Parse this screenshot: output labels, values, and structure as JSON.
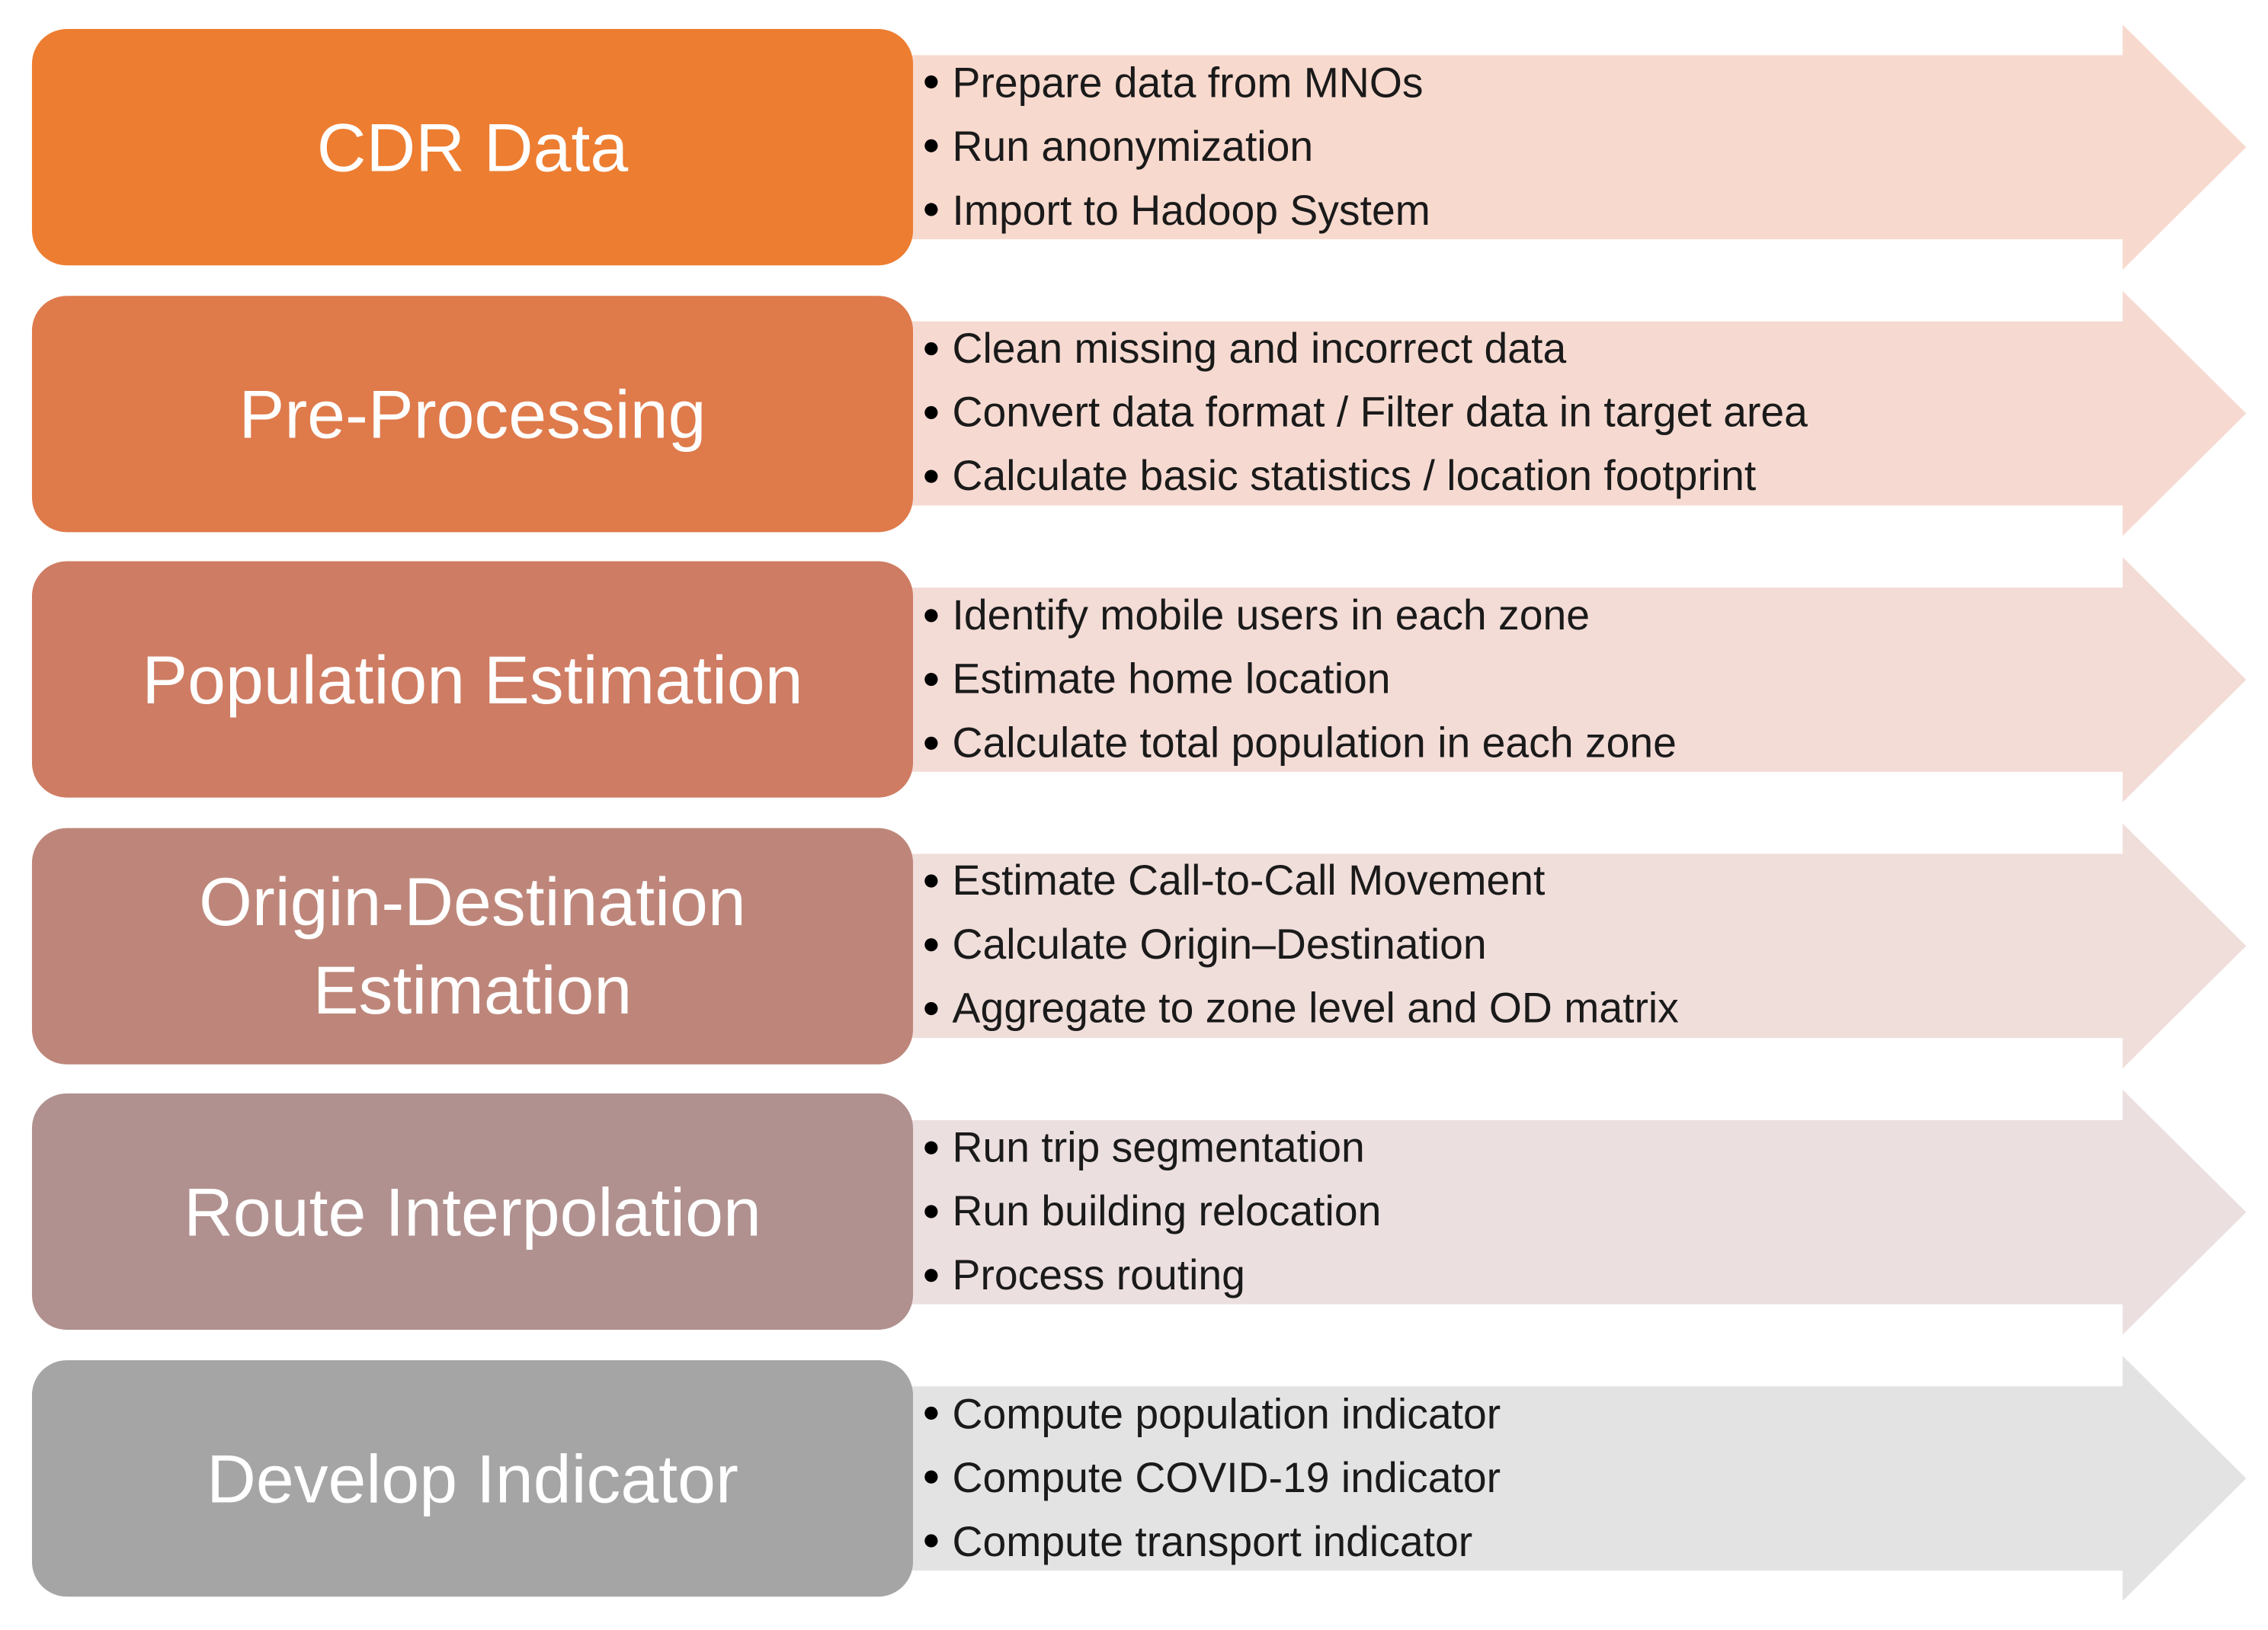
{
  "steps": [
    {
      "title": "CDR Data",
      "color": "#ED7D31",
      "band": "#F8D9CE",
      "bullets": [
        "Prepare data from MNOs",
        "Run anonymization",
        "Import to Hadoop System"
      ]
    },
    {
      "title": "Pre-Processing",
      "color": "#DF7A4B",
      "band": "#F6DAD1",
      "bullets": [
        "Clean missing and incorrect data",
        "Convert data format / Filter data in target area",
        "Calculate basic statistics / location footprint"
      ]
    },
    {
      "title": "Population Estimation",
      "color": "#CE7C63",
      "band": "#F3DBD6",
      "bullets": [
        "Identify mobile users in each zone",
        "Estimate home location",
        "Calculate total population in each zone"
      ]
    },
    {
      "title": "Origin-Destination Estimation",
      "color": "#BE867A",
      "band": "#F0DEDB",
      "bullets": [
        "Estimate Call-to-Call Movement",
        "Calculate Origin–Destination",
        "Aggregate to zone level and OD matrix"
      ]
    },
    {
      "title": "Route Interpolation",
      "color": "#B0918F",
      "band": "#ECDFDF",
      "bullets": [
        "Run trip segmentation",
        "Run building relocation",
        "Process routing"
      ]
    },
    {
      "title": "Develop Indicator",
      "color": "#A5A5A5",
      "band": "#E3E3E3",
      "bullets": [
        "Compute population indicator",
        "Compute COVID-19 indicator",
        "Compute transport indicator"
      ]
    }
  ]
}
